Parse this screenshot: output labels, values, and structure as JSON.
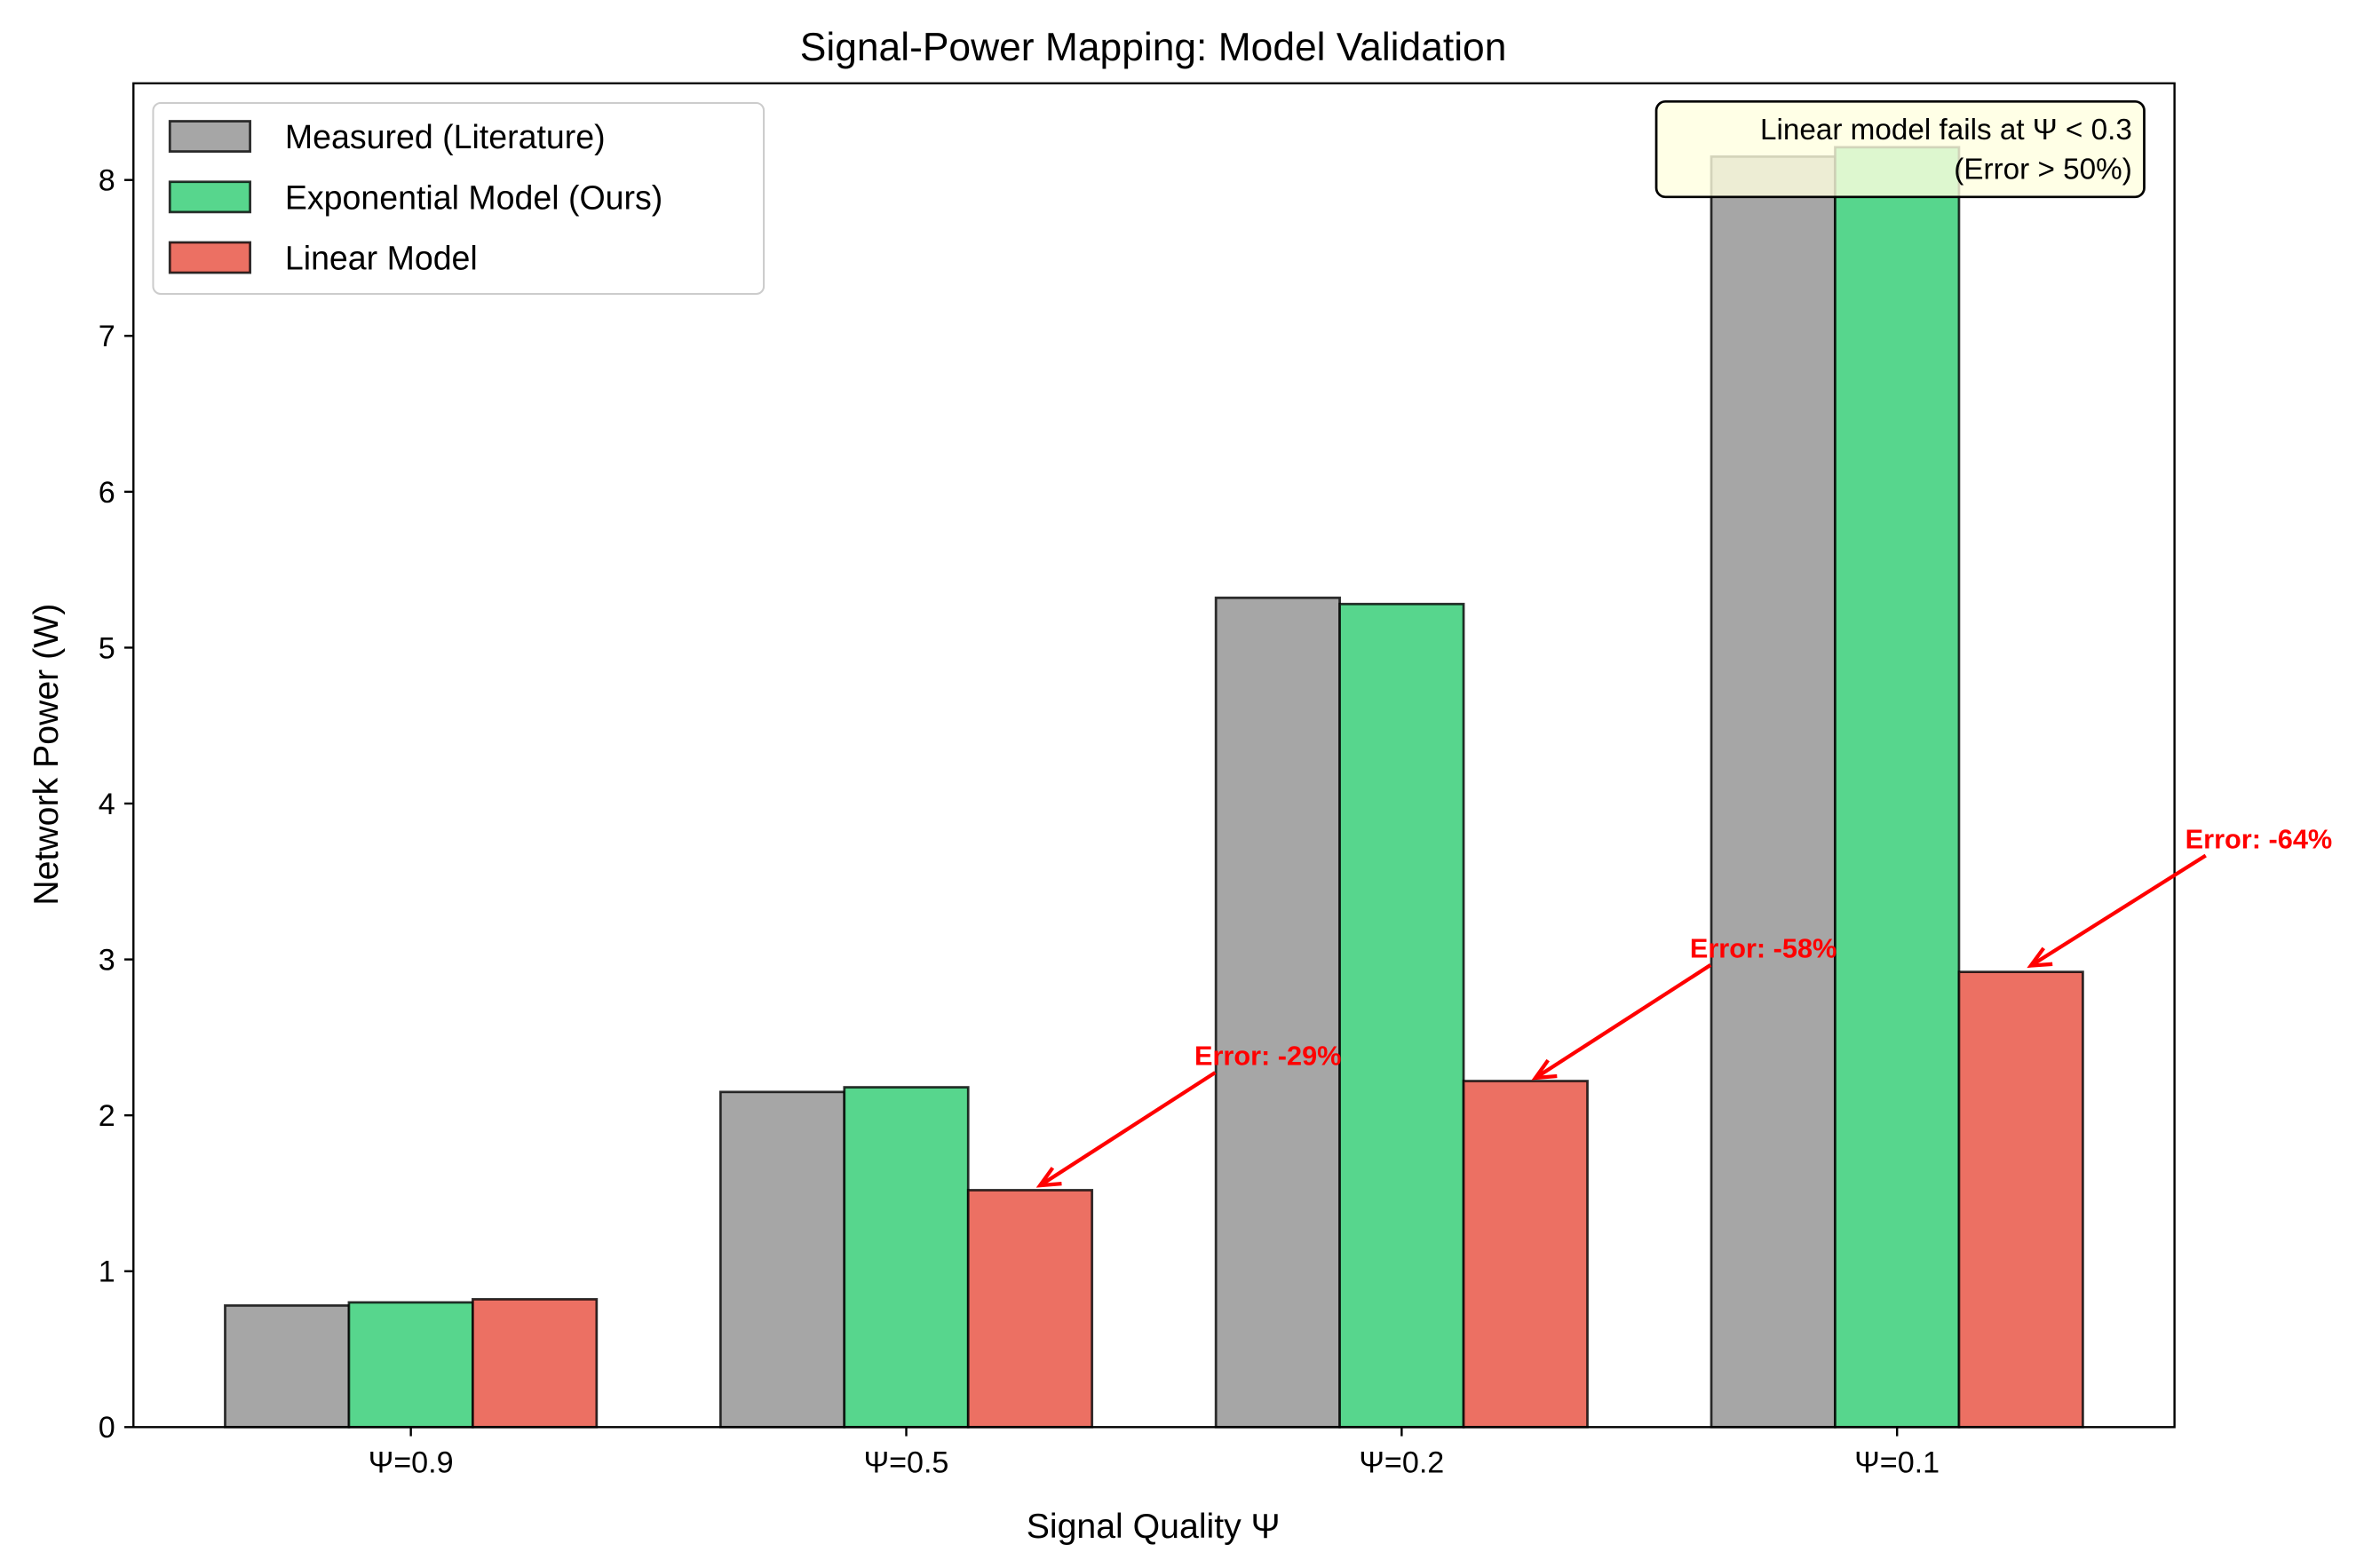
{
  "chart_data": {
    "type": "bar",
    "title": "Signal-Power Mapping: Model Validation",
    "xlabel": "Signal Quality Ψ",
    "ylabel": "Network Power (W)",
    "categories": [
      "Ψ=0.9",
      "Ψ=0.5",
      "Ψ=0.2",
      "Ψ=0.1"
    ],
    "ylim": [
      0,
      8.62
    ],
    "yticks": [
      0,
      1,
      2,
      3,
      4,
      5,
      6,
      7,
      8
    ],
    "grid": false,
    "legend_position": "top-left",
    "series": [
      {
        "name": "Measured (Literature)",
        "color": "#a6a6a6",
        "values": [
          0.78,
          2.15,
          5.32,
          8.15
        ]
      },
      {
        "name": "Exponential Model (Ours)",
        "color": "#57d68d",
        "values": [
          0.8,
          2.18,
          5.28,
          8.21
        ]
      },
      {
        "name": "Linear Model",
        "color": "#ec7063",
        "values": [
          0.82,
          1.52,
          2.22,
          2.92
        ]
      }
    ],
    "annotations": [
      {
        "text": "Error: -29%",
        "text_at": [
          1.73,
          2.38
        ],
        "arrow_to": [
          1.27,
          1.55
        ],
        "color": "#ff0000"
      },
      {
        "text": "Error: -58%",
        "text_at": [
          2.73,
          3.07
        ],
        "arrow_to": [
          2.27,
          2.24
        ],
        "color": "#ff0000"
      },
      {
        "text": "Error: -64%",
        "text_at": [
          3.73,
          3.77
        ],
        "arrow_to": [
          3.27,
          2.96
        ],
        "color": "#ff0000"
      }
    ],
    "note_box": {
      "lines": [
        "Linear model fails at Ψ < 0.3",
        "(Error > 50%)"
      ],
      "background": "#ffffe0"
    }
  }
}
